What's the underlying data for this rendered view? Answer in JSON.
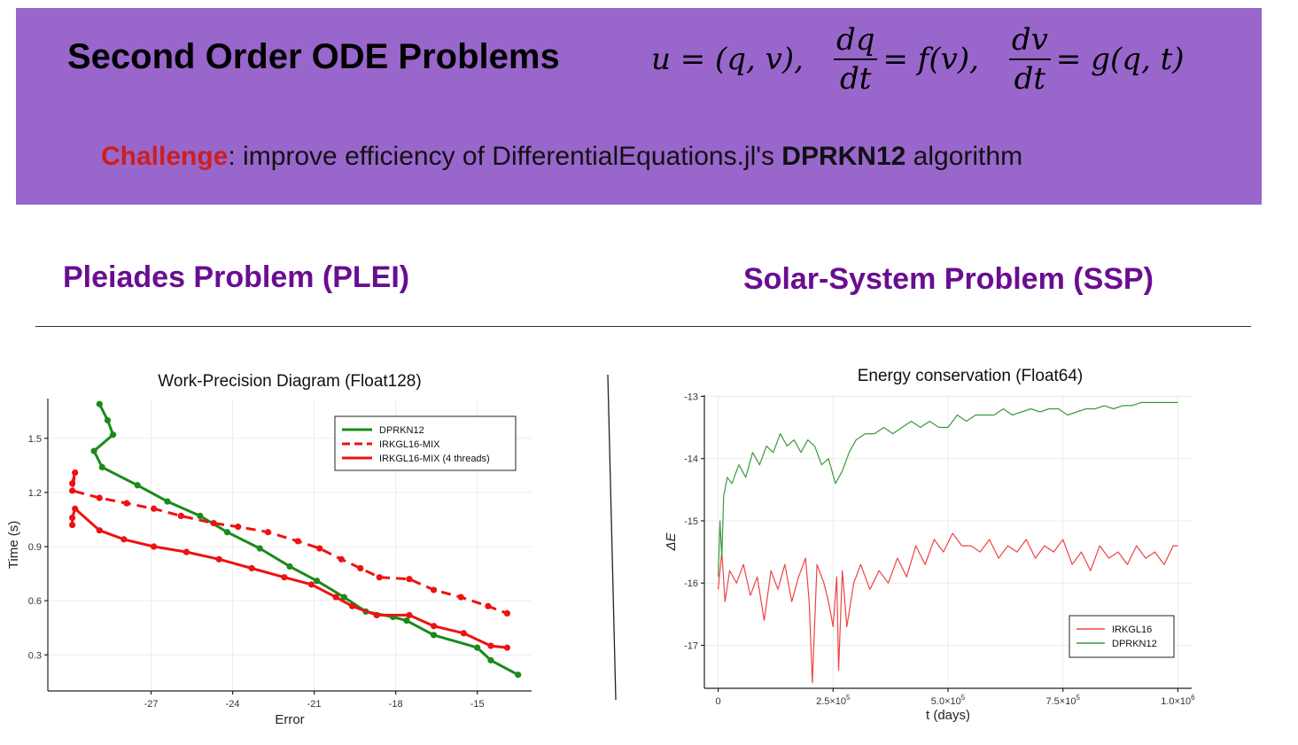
{
  "header": {
    "title": "Second Order ODE Problems",
    "challenge_word": "Challenge",
    "challenge_mid": ": improve efficiency of DifferentialEquations.jl's  ",
    "algorithm": "DPRKN12",
    "challenge_end": " algorithm",
    "formula": {
      "u_def": "u = (q, v),",
      "f_num": "dq",
      "f_den": "dt",
      "f_rhs": "= f(v),",
      "g_num": "dv",
      "g_den": "dt",
      "g_rhs": "= g(q, t)"
    }
  },
  "sections": {
    "left": "Pleiades Problem (PLEI)",
    "right": "Solar-System Problem (SSP)"
  },
  "colors": {
    "banner": "#9966cc",
    "section_title": "#6a0d91",
    "challenge": "#cc1f1f",
    "green": "#1a8a1a",
    "red": "#ee1111",
    "ssp_green": "#3a9a3a",
    "ssp_red": "#ee4444"
  },
  "chart_data": [
    {
      "type": "line",
      "title": "Work-Precision Diagram (Float128)",
      "xlabel": "Error",
      "ylabel": "Time (s)",
      "xlim": [
        -30.8,
        -13.0
      ],
      "ylim": [
        0.1,
        1.72
      ],
      "xticks": [
        -27,
        -24,
        -21,
        -18,
        -15
      ],
      "yticks": [
        0.3,
        0.6,
        0.9,
        1.2,
        1.5
      ],
      "xtick_labels": [
        "-27",
        "-24",
        "-21",
        "-18",
        "-15"
      ],
      "ytick_labels": [
        "0.3",
        "0.6",
        "0.9",
        "1.2",
        "1.5"
      ],
      "grid": true,
      "legend": "top-right",
      "series": [
        {
          "name": "DPRKN12",
          "style": "solid",
          "color": "#1a8a1a",
          "x": [
            -28.9,
            -28.6,
            -28.4,
            -29.1,
            -28.8,
            -27.5,
            -26.4,
            -25.2,
            -24.2,
            -23.0,
            -21.9,
            -20.9,
            -19.9,
            -19.1,
            -18.1,
            -17.6,
            -16.6,
            -15.0,
            -14.5,
            -13.5
          ],
          "y": [
            1.69,
            1.6,
            1.52,
            1.43,
            1.34,
            1.24,
            1.15,
            1.07,
            0.98,
            0.89,
            0.79,
            0.71,
            0.62,
            0.54,
            0.51,
            0.49,
            0.41,
            0.34,
            0.27,
            0.19
          ]
        },
        {
          "name": "IRKGL16-MIX",
          "style": "dashed",
          "color": "#ee1111",
          "x": [
            -29.9,
            -29.8,
            -29.9,
            -28.9,
            -27.9,
            -26.9,
            -25.9,
            -24.7,
            -23.8,
            -22.7,
            -21.6,
            -20.8,
            -20.0,
            -19.3,
            -18.6,
            -17.5,
            -16.6,
            -15.6,
            -14.6,
            -13.9
          ],
          "y": [
            1.25,
            1.31,
            1.21,
            1.17,
            1.14,
            1.11,
            1.07,
            1.03,
            1.01,
            0.98,
            0.93,
            0.89,
            0.83,
            0.78,
            0.73,
            0.72,
            0.66,
            0.62,
            0.57,
            0.53
          ]
        },
        {
          "name": "IRKGL16-MIX (4 threads)",
          "style": "solid",
          "color": "#ee1111",
          "x": [
            -29.9,
            -29.9,
            -29.8,
            -28.9,
            -28.0,
            -26.9,
            -25.7,
            -24.5,
            -23.3,
            -22.1,
            -21.1,
            -20.2,
            -19.6,
            -18.7,
            -17.5,
            -16.6,
            -15.5,
            -14.5,
            -13.9
          ],
          "y": [
            1.02,
            1.06,
            1.11,
            0.99,
            0.94,
            0.9,
            0.87,
            0.83,
            0.78,
            0.73,
            0.69,
            0.62,
            0.57,
            0.52,
            0.52,
            0.46,
            0.42,
            0.35,
            0.34
          ]
        }
      ]
    },
    {
      "type": "line",
      "title": "Energy conservation (Float64)",
      "xlabel": "t (days)",
      "ylabel": "ΔE",
      "xlim": [
        -30000,
        1030000
      ],
      "ylim": [
        -17.69,
        -12.98
      ],
      "xticks": [
        0,
        250000,
        500000,
        750000,
        1000000
      ],
      "xtick_labels": [
        {
          "base": "0",
          "exp": ""
        },
        {
          "base": "2.5×10",
          "exp": "5"
        },
        {
          "base": "5.0×10",
          "exp": "5"
        },
        {
          "base": "7.5×10",
          "exp": "5"
        },
        {
          "base": "1.0×10",
          "exp": "6"
        }
      ],
      "yticks": [
        -13,
        -14,
        -15,
        -16,
        -17
      ],
      "ytick_labels": [
        "-13",
        "-14",
        "-15",
        "-16",
        "-17"
      ],
      "grid": true,
      "legend": "bottom-right",
      "series": [
        {
          "name": "IRKGL16",
          "color": "#ee4444",
          "x": [
            0,
            8000,
            15000,
            25000,
            40000,
            55000,
            70000,
            85000,
            100000,
            115000,
            130000,
            145000,
            160000,
            175000,
            190000,
            198000,
            205000,
            215000,
            230000,
            240000,
            250000,
            258000,
            262000,
            270000,
            280000,
            295000,
            310000,
            330000,
            350000,
            370000,
            390000,
            410000,
            430000,
            450000,
            470000,
            490000,
            510000,
            530000,
            550000,
            570000,
            590000,
            610000,
            630000,
            650000,
            670000,
            690000,
            710000,
            730000,
            750000,
            770000,
            790000,
            810000,
            830000,
            850000,
            870000,
            890000,
            910000,
            930000,
            950000,
            970000,
            990000,
            1000000
          ],
          "y": [
            -16.1,
            -15.5,
            -16.3,
            -15.8,
            -16.0,
            -15.7,
            -16.2,
            -15.9,
            -16.6,
            -15.8,
            -16.1,
            -15.7,
            -16.3,
            -15.9,
            -15.6,
            -16.3,
            -17.6,
            -15.7,
            -16.0,
            -16.3,
            -16.7,
            -15.9,
            -17.4,
            -15.8,
            -16.7,
            -16.0,
            -15.7,
            -16.1,
            -15.8,
            -16.0,
            -15.6,
            -15.9,
            -15.4,
            -15.7,
            -15.3,
            -15.5,
            -15.2,
            -15.4,
            -15.4,
            -15.5,
            -15.3,
            -15.6,
            -15.4,
            -15.5,
            -15.3,
            -15.6,
            -15.4,
            -15.5,
            -15.3,
            -15.7,
            -15.5,
            -15.8,
            -15.4,
            -15.6,
            -15.5,
            -15.7,
            -15.4,
            -15.6,
            -15.5,
            -15.7,
            -15.4,
            -15.4
          ]
        },
        {
          "name": "DPRKN12",
          "color": "#3a9a3a",
          "x": [
            0,
            4000,
            8000,
            12000,
            20000,
            30000,
            45000,
            60000,
            75000,
            90000,
            105000,
            120000,
            135000,
            150000,
            165000,
            180000,
            195000,
            210000,
            225000,
            240000,
            255000,
            270000,
            285000,
            300000,
            320000,
            340000,
            360000,
            380000,
            400000,
            420000,
            440000,
            460000,
            480000,
            500000,
            520000,
            540000,
            560000,
            580000,
            600000,
            620000,
            640000,
            660000,
            680000,
            700000,
            720000,
            740000,
            760000,
            780000,
            800000,
            820000,
            840000,
            860000,
            880000,
            900000,
            920000,
            940000,
            960000,
            980000,
            1000000
          ],
          "y": [
            -15.9,
            -15.0,
            -15.6,
            -14.6,
            -14.3,
            -14.4,
            -14.1,
            -14.3,
            -13.9,
            -14.1,
            -13.8,
            -13.9,
            -13.6,
            -13.8,
            -13.7,
            -13.9,
            -13.7,
            -13.8,
            -14.1,
            -14.0,
            -14.4,
            -14.2,
            -13.9,
            -13.7,
            -13.6,
            -13.6,
            -13.5,
            -13.6,
            -13.5,
            -13.4,
            -13.5,
            -13.4,
            -13.5,
            -13.5,
            -13.3,
            -13.4,
            -13.3,
            -13.3,
            -13.3,
            -13.2,
            -13.3,
            -13.25,
            -13.2,
            -13.25,
            -13.2,
            -13.2,
            -13.3,
            -13.25,
            -13.2,
            -13.2,
            -13.15,
            -13.2,
            -13.15,
            -13.15,
            -13.1,
            -13.1,
            -13.1,
            -13.1,
            -13.1
          ]
        }
      ]
    }
  ]
}
